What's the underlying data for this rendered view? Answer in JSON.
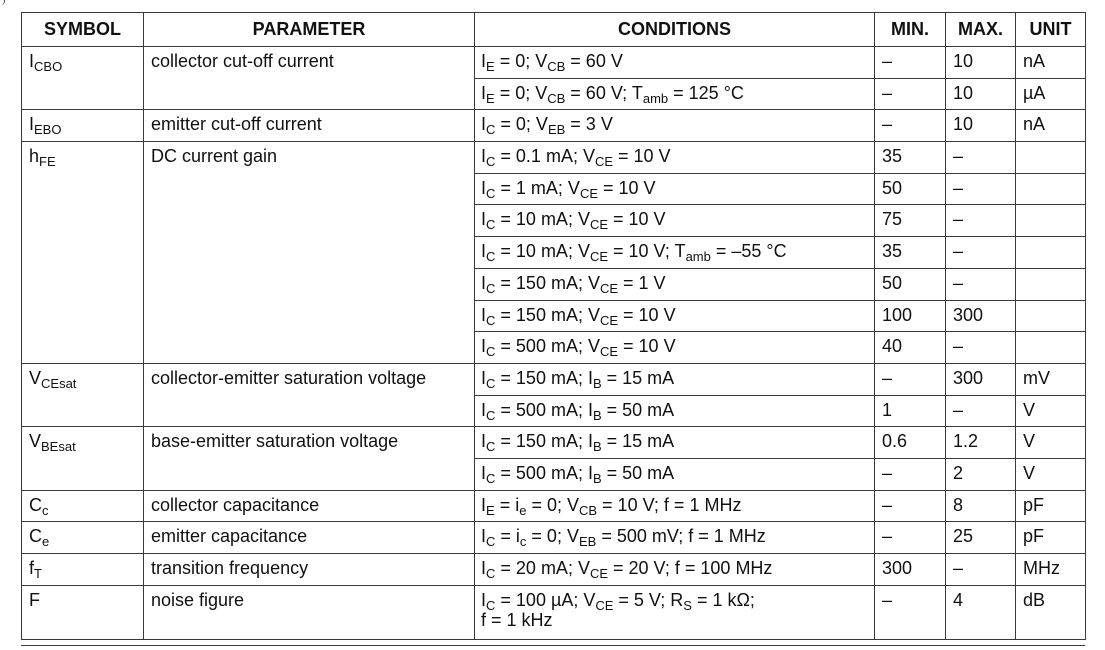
{
  "table": {
    "headers": {
      "symbol": "SYMBOL",
      "parameter": "PARAMETER",
      "conditions": "CONDITIONS",
      "min": "MIN.",
      "max": "MAX.",
      "unit": "UNIT"
    },
    "groups": [
      {
        "symbol": "I<sub>CBO</sub>",
        "parameter": "collector cut-off current",
        "rows": [
          {
            "conditions": "I<sub>E</sub> = 0; V<sub>CB</sub> = 60 V",
            "min": "–",
            "max": "10",
            "unit": "nA"
          },
          {
            "conditions": "I<sub>E</sub> = 0; V<sub>CB</sub> = 60 V; T<sub>amb</sub> = 125 °C",
            "min": "–",
            "max": "10",
            "unit": "µA"
          }
        ]
      },
      {
        "symbol": "I<sub>EBO</sub>",
        "parameter": "emitter cut-off current",
        "rows": [
          {
            "conditions": "I<sub>C</sub> = 0; V<sub>EB</sub> = 3 V",
            "min": "–",
            "max": "10",
            "unit": "nA"
          }
        ]
      },
      {
        "symbol": "h<sub>FE</sub>",
        "parameter": "DC current gain",
        "rows": [
          {
            "conditions": "I<sub>C</sub> = 0.1 mA; V<sub>CE</sub> = 10 V",
            "min": "35",
            "max": "–",
            "unit": ""
          },
          {
            "conditions": "I<sub>C</sub> = 1 mA; V<sub>CE</sub> = 10 V",
            "min": "50",
            "max": "–",
            "unit": ""
          },
          {
            "conditions": "I<sub>C</sub> = 10 mA; V<sub>CE</sub> = 10 V",
            "min": "75",
            "max": "–",
            "unit": ""
          },
          {
            "conditions": "I<sub>C</sub> = 10 mA; V<sub>CE</sub> = 10 V; T<sub>amb</sub> = –55 °C",
            "min": "35",
            "max": "–",
            "unit": ""
          },
          {
            "conditions": "I<sub>C</sub> = 150 mA; V<sub>CE</sub> = 1 V",
            "min": "50",
            "max": "–",
            "unit": ""
          },
          {
            "conditions": "I<sub>C</sub> = 150 mA; V<sub>CE</sub> = 10 V",
            "min": "100",
            "max": "300",
            "unit": ""
          },
          {
            "conditions": "I<sub>C</sub> = 500 mA; V<sub>CE</sub> = 10 V",
            "min": "40",
            "max": "–",
            "unit": ""
          }
        ]
      },
      {
        "symbol": "V<sub>CEsat</sub>",
        "parameter": "collector-emitter saturation voltage",
        "rows": [
          {
            "conditions": "I<sub>C</sub> = 150 mA; I<sub>B</sub> = 15 mA",
            "min": "–",
            "max": "300",
            "unit": "mV"
          },
          {
            "conditions": "I<sub>C</sub> = 500 mA; I<sub>B</sub> = 50 mA",
            "min": "1",
            "max": "–",
            "unit": "V"
          }
        ]
      },
      {
        "symbol": "V<sub>BEsat</sub>",
        "parameter": "base-emitter saturation voltage",
        "rows": [
          {
            "conditions": "I<sub>C</sub> = 150 mA; I<sub>B</sub> = 15 mA",
            "min": "0.6",
            "max": "1.2",
            "unit": "V"
          },
          {
            "conditions": "I<sub>C</sub> = 500 mA; I<sub>B</sub> = 50 mA",
            "min": "–",
            "max": "2",
            "unit": "V"
          }
        ]
      },
      {
        "symbol": "C<sub>c</sub>",
        "parameter": "collector capacitance",
        "rows": [
          {
            "conditions": "I<sub>E</sub> = i<sub>e</sub> = 0; V<sub>CB</sub> = 10 V; f = 1 MHz",
            "min": "–",
            "max": "8",
            "unit": "pF"
          }
        ]
      },
      {
        "symbol": "C<sub>e</sub>",
        "parameter": "emitter capacitance",
        "rows": [
          {
            "conditions": "I<sub>C</sub> = i<sub>c</sub> = 0; V<sub>EB</sub> = 500 mV; f = 1 MHz",
            "min": "–",
            "max": "25",
            "unit": "pF"
          }
        ]
      },
      {
        "symbol": "f<sub>T</sub>",
        "parameter": "transition frequency",
        "rows": [
          {
            "conditions": "I<sub>C</sub> = 20 mA; V<sub>CE</sub> = 20 V; f = 100 MHz",
            "min": "300",
            "max": "–",
            "unit": "MHz"
          }
        ]
      },
      {
        "symbol": "F",
        "parameter": "noise figure",
        "rows": [
          {
            "conditions": "I<sub>C</sub> = 100 µA; V<sub>CE</sub> = 5 V; R<sub>S</sub> = 1 kΩ;<br>f = 1 kHz",
            "min": "–",
            "max": "4",
            "unit": "dB",
            "tall": true
          }
        ]
      }
    ]
  }
}
